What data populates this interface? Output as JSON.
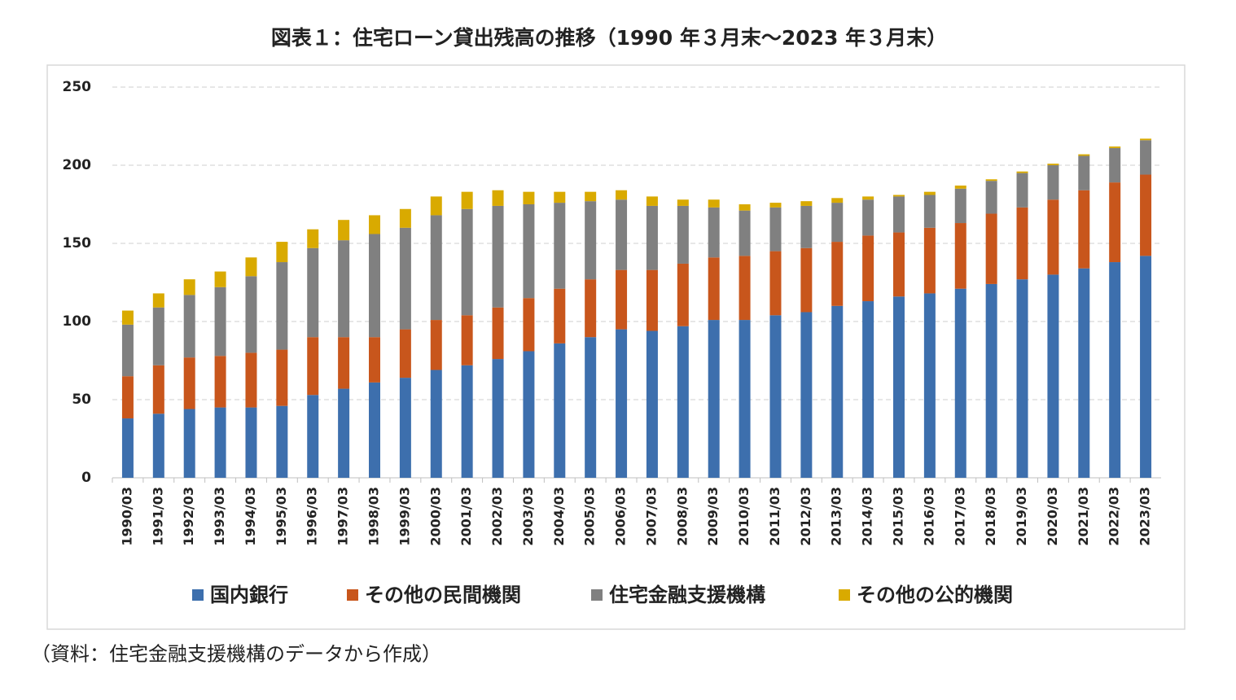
{
  "chart_data": {
    "type": "stacked_bar",
    "title": "図表１：住宅ローン貸出残高の推移（1990 年３月末～2023 年３月末）",
    "note": "（資料：住宅金融支援機構のデータから作成）",
    "categories": [
      "1990/03",
      "1991/03",
      "1992/03",
      "1993/03",
      "1994/03",
      "1995/03",
      "1996/03",
      "1997/03",
      "1998/03",
      "1999/03",
      "2000/03",
      "2001/03",
      "2002/03",
      "2003/03",
      "2004/03",
      "2005/03",
      "2006/03",
      "2007/03",
      "2008/03",
      "2009/03",
      "2010/03",
      "2011/03",
      "2012/03",
      "2013/03",
      "2014/03",
      "2015/03",
      "2016/03",
      "2017/03",
      "2018/03",
      "2019/03",
      "2020/03",
      "2021/03",
      "2022/03",
      "2023/03"
    ],
    "series": [
      {
        "name": "国内銀行",
        "color": "#3d6fad",
        "values": [
          38,
          41,
          44,
          45,
          45,
          46,
          53,
          57,
          61,
          64,
          69,
          72,
          76,
          81,
          86,
          90,
          95,
          94,
          97,
          101,
          101,
          104,
          106,
          110,
          113,
          116,
          118,
          121,
          124,
          127,
          130,
          134,
          138,
          142
        ]
      },
      {
        "name": "その他の民間機関",
        "color": "#c8561c",
        "values": [
          27,
          31,
          33,
          33,
          35,
          36,
          37,
          33,
          29,
          31,
          32,
          32,
          33,
          34,
          35,
          37,
          38,
          39,
          40,
          40,
          41,
          41,
          41,
          41,
          42,
          41,
          42,
          42,
          45,
          46,
          48,
          50,
          51,
          52
        ]
      },
      {
        "name": "住宅金融支援機構",
        "color": "#808080",
        "values": [
          33,
          37,
          40,
          44,
          49,
          56,
          57,
          62,
          66,
          65,
          67,
          68,
          65,
          60,
          55,
          50,
          45,
          41,
          37,
          32,
          29,
          28,
          27,
          25,
          23,
          23,
          21,
          22,
          21,
          22,
          22,
          22,
          22,
          22
        ]
      },
      {
        "name": "その他の公的機関",
        "color": "#d9aa00",
        "values": [
          9,
          9,
          10,
          10,
          12,
          13,
          12,
          13,
          12,
          12,
          12,
          11,
          10,
          8,
          7,
          6,
          6,
          6,
          4,
          5,
          4,
          3,
          3,
          3,
          2,
          1,
          2,
          2,
          1,
          1,
          1,
          1,
          1,
          1
        ]
      }
    ],
    "ylim": [
      0,
      250
    ],
    "yticks": [
      0,
      50,
      100,
      150,
      200,
      250
    ],
    "grid": true,
    "legend": "bottom"
  }
}
